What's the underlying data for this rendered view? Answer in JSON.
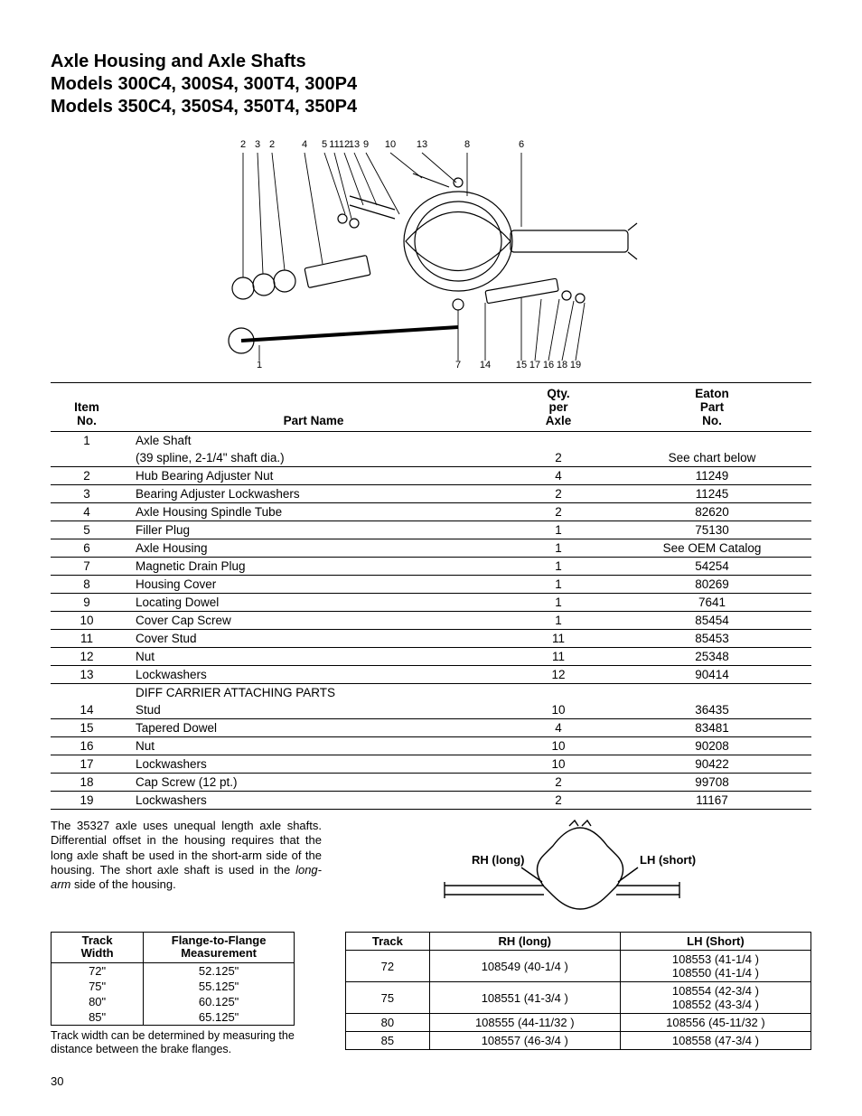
{
  "title": {
    "line1": "Axle Housing and Axle Shafts",
    "line2": "Models 300C4, 300S4, 300T4, 300P4",
    "line3": "Models 350C4, 350S4, 350T4, 350P4"
  },
  "main_diagram": {
    "callouts_top": [
      "2",
      "3",
      "2",
      "4",
      "5",
      "11",
      "12",
      "13",
      "9",
      "10",
      "13",
      "8",
      "6"
    ],
    "callouts_bottom_left": "1",
    "callouts_bottom_mid": [
      "7",
      "14"
    ],
    "callouts_bottom_right": [
      "15",
      "17",
      "16",
      "18",
      "19"
    ]
  },
  "parts_table": {
    "headers": {
      "item": [
        "Item",
        "No."
      ],
      "name": [
        "Part Name"
      ],
      "qty": [
        "Qty.",
        "per",
        "Axle"
      ],
      "part": [
        "Eaton",
        "Part",
        "No."
      ]
    },
    "rows": [
      {
        "item": "1",
        "name": "Axle Shaft",
        "qty": "",
        "part": "",
        "ruled": false
      },
      {
        "item": "",
        "name": "(39 spline, 2-1/4\" shaft dia.)",
        "qty": "2",
        "part": "See chart below",
        "ruled": true
      },
      {
        "item": "2",
        "name": "Hub Bearing Adjuster Nut",
        "qty": "4",
        "part": "11249",
        "ruled": true
      },
      {
        "item": "3",
        "name": "Bearing Adjuster Lockwashers",
        "qty": "2",
        "part": "11245",
        "ruled": true
      },
      {
        "item": "4",
        "name": "Axle Housing Spindle Tube",
        "qty": "2",
        "part": "82620",
        "ruled": true
      },
      {
        "item": "5",
        "name": "Filler Plug",
        "qty": "1",
        "part": "75130",
        "ruled": true
      },
      {
        "item": "6",
        "name": "Axle Housing",
        "qty": "1",
        "part": "See OEM Catalog",
        "ruled": true
      },
      {
        "item": "7",
        "name": "Magnetic Drain Plug",
        "qty": "1",
        "part": "54254",
        "ruled": true
      },
      {
        "item": "8",
        "name": "Housing Cover",
        "qty": "1",
        "part": "80269",
        "ruled": true
      },
      {
        "item": "9",
        "name": "Locating Dowel",
        "qty": "1",
        "part": "7641",
        "ruled": true
      },
      {
        "item": "10",
        "name": "Cover Cap Screw",
        "qty": "1",
        "part": "85454",
        "ruled": true
      },
      {
        "item": "11",
        "name": "Cover Stud",
        "qty": "11",
        "part": "85453",
        "ruled": true
      },
      {
        "item": "12",
        "name": "Nut",
        "qty": "11",
        "part": "25348",
        "ruled": true
      },
      {
        "item": "13",
        "name": "Lockwashers",
        "qty": "12",
        "part": "90414",
        "ruled": true
      },
      {
        "item": "",
        "name": "DIFF CARRIER ATTACHING PARTS",
        "qty": "",
        "part": "",
        "ruled": false
      },
      {
        "item": "14",
        "name": "Stud",
        "qty": "10",
        "part": "36435",
        "ruled": true
      },
      {
        "item": "15",
        "name": "Tapered Dowel",
        "qty": "4",
        "part": "83481",
        "ruled": true
      },
      {
        "item": "16",
        "name": "Nut",
        "qty": "10",
        "part": "90208",
        "ruled": true
      },
      {
        "item": "17",
        "name": "Lockwashers",
        "qty": "10",
        "part": "90422",
        "ruled": true
      },
      {
        "item": "18",
        "name": "Cap Screw (12 pt.)",
        "qty": "2",
        "part": "99708",
        "ruled": true
      },
      {
        "item": "19",
        "name": "Lockwashers",
        "qty": "2",
        "part": "11167",
        "ruled": true
      }
    ]
  },
  "note": {
    "p1a": "The 35327 axle uses unequal length axle shafts. Differential offset in the housing requires that the long axle shaft be used in the short-arm side of the housing. The short axle shaft is used in the ",
    "p1b": "long-arm",
    "p1c": " side of the housing."
  },
  "small_diagram": {
    "left_label": "RH (long)",
    "right_label": "LH (short)"
  },
  "track_table": {
    "headers": {
      "w": [
        "Track",
        "Width"
      ],
      "f": [
        "Flange-to-Flange",
        "Measurement"
      ]
    },
    "rows": [
      {
        "w": "72\"",
        "f": "52.125\""
      },
      {
        "w": "75\"",
        "f": "55.125\""
      },
      {
        "w": "80\"",
        "f": "60.125\""
      },
      {
        "w": "85\"",
        "f": "65.125\""
      }
    ],
    "caption": "Track width can be determined by measuring the distance between the brake flanges."
  },
  "shaft_table": {
    "headers": {
      "track": "Track",
      "rh": "RH (long)",
      "lh": "LH (Short)"
    },
    "rows": [
      {
        "track": "72",
        "rh": "108549 (40-1/4 )",
        "lh": "108553 (41-1/4 )\n108550 (41-1/4 )"
      },
      {
        "track": "75",
        "rh": "108551 (41-3/4 )",
        "lh": "108554 (42-3/4 )\n108552 (43-3/4 )"
      },
      {
        "track": "80",
        "rh": "108555 (44-11/32 )",
        "lh": "108556 (45-11/32 )"
      },
      {
        "track": "85",
        "rh": "108557 (46-3/4 )",
        "lh": "108558 (47-3/4 )"
      }
    ]
  },
  "page_number": "30"
}
